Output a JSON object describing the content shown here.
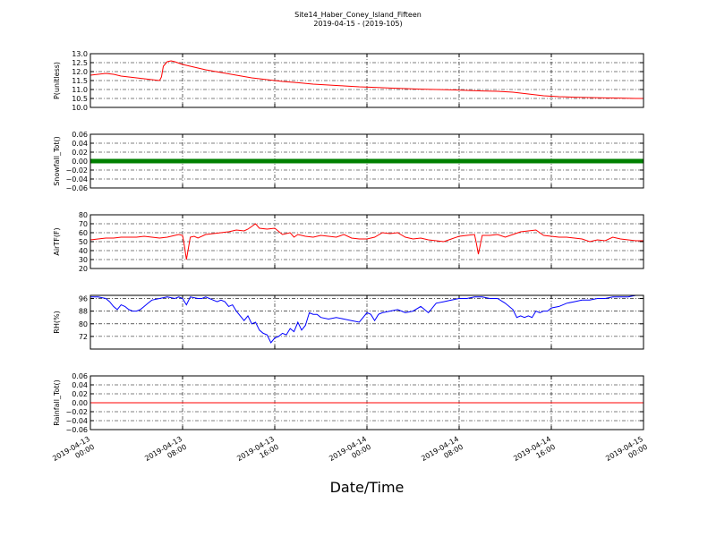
{
  "figure": {
    "title": "Site14_Haber_Coney_Island_Fifteen",
    "subtitle": "2019-04-15 - (2019-105)",
    "xlabel": "Date/Time"
  },
  "chart_data": [
    {
      "type": "line",
      "ylabel": "P(unitless)",
      "ylim": [
        10.0,
        13.0
      ],
      "yticks": [
        "10.0",
        "10.5",
        "11.0",
        "11.5",
        "12.0",
        "12.5",
        "13.0"
      ],
      "grid": true,
      "series": [
        {
          "color": "#ff0000",
          "x": [
            0,
            2,
            4,
            6,
            8,
            10,
            12,
            14,
            16,
            18,
            18.5,
            19,
            20,
            21,
            22,
            24,
            26,
            28,
            30,
            34,
            38,
            42,
            46,
            50,
            54,
            58,
            62,
            66,
            70,
            74,
            78,
            82,
            86,
            90,
            94,
            98,
            102,
            106,
            110,
            114,
            118,
            122,
            126,
            130,
            134,
            138,
            142,
            144
          ],
          "y": [
            11.8,
            11.85,
            11.9,
            11.85,
            11.75,
            11.7,
            11.65,
            11.6,
            11.55,
            11.5,
            11.7,
            12.3,
            12.55,
            12.6,
            12.55,
            12.4,
            12.3,
            12.2,
            12.1,
            11.95,
            11.8,
            11.65,
            11.55,
            11.45,
            11.38,
            11.3,
            11.25,
            11.2,
            11.15,
            11.12,
            11.08,
            11.05,
            11.02,
            11.0,
            10.98,
            10.95,
            10.92,
            10.9,
            10.85,
            10.75,
            10.65,
            10.6,
            10.57,
            10.55,
            10.53,
            10.52,
            10.5,
            10.5
          ]
        }
      ]
    },
    {
      "type": "line",
      "ylabel": "Snowfall_Tot()",
      "ylim": [
        -0.06,
        0.06
      ],
      "yticks": [
        "−0.06",
        "−0.04",
        "−0.02",
        "0.00",
        "0.02",
        "0.04",
        "0.06"
      ],
      "grid": true,
      "series": [
        {
          "color": "#008000",
          "marker": "circle",
          "x": [
            0,
            144
          ],
          "y": [
            0,
            0
          ]
        }
      ]
    },
    {
      "type": "line",
      "ylabel": "AirTF(F)",
      "ylim": [
        20,
        80
      ],
      "yticks": [
        "20",
        "30",
        "40",
        "50",
        "60",
        "70",
        "80"
      ],
      "grid": true,
      "series": [
        {
          "color": "#ff0000",
          "x": [
            0,
            2,
            4,
            6,
            8,
            10,
            12,
            14,
            16,
            18,
            20,
            22,
            23,
            24,
            24.5,
            25,
            26,
            27,
            28,
            30,
            32,
            34,
            36,
            38,
            40,
            41,
            42,
            43,
            44,
            46,
            48,
            50,
            52,
            53,
            54,
            56,
            58,
            60,
            62,
            64,
            66,
            68,
            70,
            72,
            74,
            76,
            78,
            80,
            82,
            84,
            86,
            88,
            90,
            92,
            94,
            96,
            98,
            100,
            100.5,
            101,
            102,
            104,
            106,
            108,
            110,
            112,
            114,
            116,
            118,
            120,
            122,
            124,
            126,
            128,
            130,
            132,
            134,
            136,
            138,
            140,
            142,
            144
          ],
          "y": [
            52,
            53,
            54,
            54,
            55,
            55,
            55,
            56,
            55,
            54,
            55,
            57,
            58,
            57,
            45,
            30,
            55,
            56,
            54,
            58,
            59,
            60,
            61,
            63,
            62,
            64,
            67,
            70,
            65,
            64,
            65,
            58,
            60,
            55,
            58,
            56,
            55,
            57,
            56,
            55,
            58,
            54,
            53,
            53,
            55,
            60,
            59,
            60,
            55,
            53,
            54,
            52,
            51,
            50,
            53,
            56,
            57,
            58,
            48,
            36,
            57,
            57,
            58,
            55,
            58,
            61,
            62,
            63,
            57,
            56,
            55,
            55,
            54,
            53,
            50,
            52,
            51,
            55,
            53,
            52,
            51,
            51
          ]
        }
      ]
    },
    {
      "type": "line",
      "ylabel": "RH(%)",
      "ylim": [
        64,
        98
      ],
      "yticks": [
        "72",
        "80",
        "88",
        "96"
      ],
      "grid": true,
      "series": [
        {
          "color": "#0000ff",
          "x": [
            0,
            2,
            4,
            5,
            6,
            7,
            8,
            9,
            10,
            11,
            12,
            13,
            14,
            15,
            16,
            18,
            20,
            22,
            23,
            24,
            25,
            26,
            28,
            29,
            30,
            31,
            32,
            33,
            34,
            35,
            36,
            37,
            38,
            39,
            40,
            41,
            42,
            43,
            44,
            45,
            46,
            47,
            48,
            49,
            50,
            51,
            52,
            53,
            54,
            55,
            56,
            57,
            58,
            59,
            60,
            62,
            64,
            66,
            68,
            70,
            71,
            72,
            73,
            74,
            75,
            76,
            78,
            80,
            82,
            84,
            86,
            88,
            90,
            92,
            94,
            96,
            98,
            100,
            102,
            104,
            106,
            108,
            110,
            111,
            112,
            113,
            114,
            115,
            116,
            117,
            118,
            119,
            120,
            122,
            124,
            126,
            128,
            130,
            132,
            134,
            136,
            138,
            140,
            142,
            144
          ],
          "y": [
            97,
            97,
            96,
            94,
            91,
            89,
            92,
            91,
            89,
            88,
            88,
            89,
            91,
            93,
            95,
            96,
            97,
            96,
            97,
            96,
            92,
            97,
            96,
            96,
            97,
            96,
            95,
            94,
            95,
            94,
            91,
            92,
            88,
            85,
            82,
            85,
            80,
            81,
            76,
            74,
            73,
            68,
            71,
            72,
            74,
            73,
            77,
            75,
            81,
            76,
            79,
            87,
            86,
            86,
            84,
            83,
            84,
            83,
            82,
            81,
            84,
            87,
            86,
            82,
            86,
            87,
            88,
            89,
            87,
            88,
            91,
            87,
            93,
            94,
            95,
            96,
            96,
            97,
            97,
            96,
            96,
            93,
            89,
            84,
            85,
            84,
            85,
            84,
            88,
            87,
            88,
            88,
            90,
            91,
            93,
            94,
            95,
            95,
            96,
            96,
            97,
            97,
            97,
            98,
            98
          ]
        }
      ]
    },
    {
      "type": "line",
      "ylabel": "Rainfall_Tot()",
      "ylim": [
        -0.06,
        0.06
      ],
      "yticks": [
        "−0.06",
        "−0.04",
        "−0.02",
        "0.00",
        "0.02",
        "0.04",
        "0.06"
      ],
      "grid": true,
      "series": [
        {
          "color": "#ff0000",
          "x": [
            0,
            144
          ],
          "y": [
            0,
            0
          ]
        }
      ]
    }
  ],
  "xaxis": {
    "range_hours": [
      0,
      144
    ],
    "tick_hours": [
      0,
      24,
      48,
      72,
      96,
      120,
      144
    ],
    "tick_labels": [
      [
        "2019-04-13",
        "00:00"
      ],
      [
        "2019-04-13",
        "08:00"
      ],
      [
        "2019-04-13",
        "16:00"
      ],
      [
        "2019-04-14",
        "00:00"
      ],
      [
        "2019-04-14",
        "08:00"
      ],
      [
        "2019-04-14",
        "16:00"
      ],
      [
        "2019-04-15",
        "00:00"
      ]
    ]
  }
}
